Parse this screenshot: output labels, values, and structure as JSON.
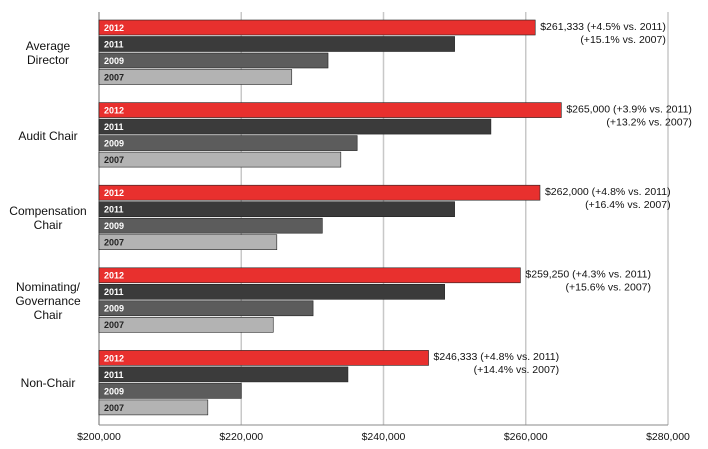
{
  "chart_data": {
    "type": "hbar",
    "categories": [
      "Average\nDirector",
      "Audit Chair",
      "Compensation\nChair",
      "Nominating/\nGovernance\nChair",
      "Non-Chair"
    ],
    "series": [
      {
        "name": "2012",
        "color": "#e8302e",
        "values": [
          261333,
          265000,
          262000,
          259250,
          246333
        ]
      },
      {
        "name": "2011",
        "color": "#3b3b3b",
        "values": [
          250000,
          255100,
          250000,
          248600,
          235000
        ]
      },
      {
        "name": "2009",
        "color": "#5c5c5c",
        "values": [
          232200,
          236300,
          231400,
          230100,
          220000
        ]
      },
      {
        "name": "2007",
        "color": "#b3b3b3",
        "values": [
          227100,
          234000,
          225000,
          224500,
          215300
        ]
      }
    ],
    "annotations": [
      [
        "$261,333 (+4.5% vs.  2011)",
        "(+15.1% vs.  2007)"
      ],
      [
        "$265,000 (+3.9% vs.  2011)",
        "(+13.2% vs.  2007)"
      ],
      [
        "$262,000 (+4.8% vs.  2011)",
        "(+16.4% vs.  2007)"
      ],
      [
        "$259,250 (+4.3% vs.  2011)",
        "(+15.6% vs.  2007)"
      ],
      [
        "$246,333 (+4.8% vs.  2011)",
        "(+14.4% vs.  2007)"
      ]
    ],
    "xlim": [
      200000,
      280000
    ],
    "xticks": [
      {
        "value": 200000,
        "label": "$200,000"
      },
      {
        "value": 220000,
        "label": "$220,000"
      },
      {
        "value": 240000,
        "label": "$240,000"
      },
      {
        "value": 260000,
        "label": "$260,000"
      },
      {
        "value": 280000,
        "label": "$280,000"
      }
    ],
    "grid": true
  }
}
